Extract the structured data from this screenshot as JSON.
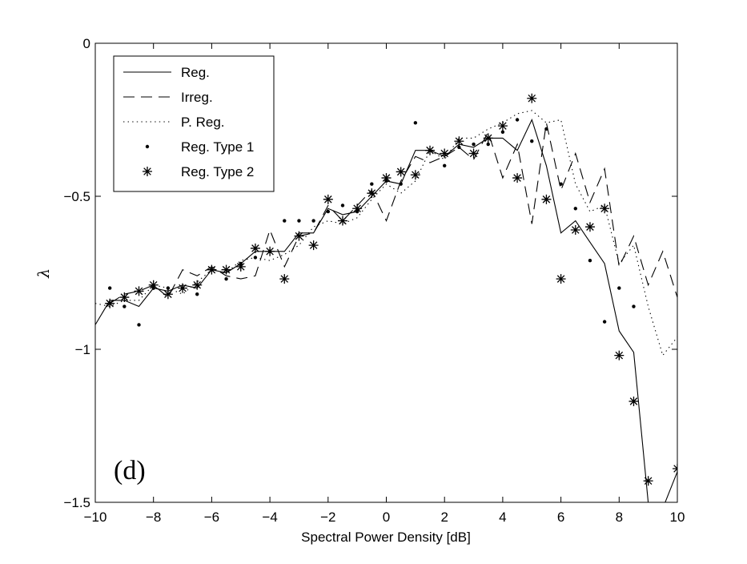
{
  "chart_data": {
    "type": "line",
    "xlabel": "Spectral Power Density [dB]",
    "ylabel": "λ",
    "panel_label": "(d)",
    "xlim": [
      -10,
      10
    ],
    "ylim": [
      -1.5,
      0
    ],
    "xticks": [
      -10,
      -8,
      -6,
      -4,
      -2,
      0,
      2,
      4,
      6,
      8,
      10
    ],
    "yticks": [
      0,
      -0.5,
      -1,
      -1.5
    ],
    "xtick_labels": [
      "−10",
      "−8",
      "−6",
      "−4",
      "−2",
      "0",
      "2",
      "4",
      "6",
      "8",
      "10"
    ],
    "ytick_labels": [
      "0",
      "−0.5",
      "−1",
      "−1.5"
    ],
    "grid": false,
    "legend_position": "top-left",
    "series": [
      {
        "name": "Reg.",
        "style": "solid",
        "x": [
          -10,
          -9.5,
          -9,
          -8.5,
          -8,
          -7.5,
          -7,
          -6.5,
          -6,
          -5.5,
          -5,
          -4.5,
          -4,
          -3.5,
          -3,
          -2.5,
          -2,
          -1.5,
          -1,
          -0.5,
          0,
          0.5,
          1,
          1.5,
          2,
          2.5,
          3,
          3.5,
          4,
          4.5,
          5,
          5.5,
          6,
          6.5,
          7,
          7.5,
          8,
          8.5,
          9,
          9.5,
          10
        ],
        "y": [
          -0.92,
          -0.84,
          -0.84,
          -0.86,
          -0.8,
          -0.81,
          -0.79,
          -0.8,
          -0.74,
          -0.75,
          -0.72,
          -0.68,
          -0.68,
          -0.68,
          -0.62,
          -0.62,
          -0.54,
          -0.56,
          -0.55,
          -0.5,
          -0.45,
          -0.46,
          -0.35,
          -0.35,
          -0.37,
          -0.33,
          -0.34,
          -0.31,
          -0.31,
          -0.35,
          -0.25,
          -0.4,
          -0.62,
          -0.58,
          -0.65,
          -0.72,
          -0.94,
          -1.01,
          -1.5,
          -1.52,
          -1.4
        ]
      },
      {
        "name": "Irreg.",
        "style": "dashed",
        "x": [
          -9.5,
          -9,
          -8.5,
          -8,
          -7.5,
          -7,
          -6.5,
          -6,
          -5.5,
          -5,
          -4.5,
          -4,
          -3.5,
          -3,
          -2.5,
          -2,
          -1.5,
          -1,
          -0.5,
          0,
          0.5,
          1,
          1.5,
          2,
          2.5,
          3,
          3.5,
          4,
          4.5,
          5,
          5.5,
          6,
          6.5,
          7,
          7.5,
          8,
          8.5,
          9,
          9.5,
          10
        ],
        "y": [
          -0.85,
          -0.82,
          -0.81,
          -0.79,
          -0.83,
          -0.74,
          -0.76,
          -0.73,
          -0.76,
          -0.77,
          -0.76,
          -0.61,
          -0.73,
          -0.63,
          -0.62,
          -0.53,
          -0.58,
          -0.53,
          -0.48,
          -0.58,
          -0.45,
          -0.37,
          -0.39,
          -0.37,
          -0.34,
          -0.38,
          -0.29,
          -0.44,
          -0.33,
          -0.59,
          -0.26,
          -0.48,
          -0.36,
          -0.52,
          -0.41,
          -0.73,
          -0.63,
          -0.79,
          -0.68,
          -0.83
        ]
      },
      {
        "name": "P. Reg.",
        "style": "dotted",
        "x": [
          -10,
          -9.5,
          -9,
          -8.5,
          -8,
          -7.5,
          -7,
          -6.5,
          -6,
          -5.5,
          -5,
          -4.5,
          -4,
          -3.5,
          -3,
          -2.5,
          -2,
          -1.5,
          -1,
          -0.5,
          0,
          0.5,
          1,
          1.5,
          2,
          2.5,
          3,
          3.5,
          4,
          4.5,
          5,
          5.5,
          6,
          6.5,
          7,
          7.5,
          8,
          8.5,
          9,
          9.5,
          10
        ],
        "y": [
          -0.85,
          -0.86,
          -0.84,
          -0.84,
          -0.79,
          -0.8,
          -0.82,
          -0.78,
          -0.74,
          -0.75,
          -0.71,
          -0.7,
          -0.71,
          -0.69,
          -0.66,
          -0.6,
          -0.58,
          -0.59,
          -0.57,
          -0.51,
          -0.46,
          -0.49,
          -0.45,
          -0.35,
          -0.38,
          -0.31,
          -0.31,
          -0.28,
          -0.26,
          -0.23,
          -0.22,
          -0.26,
          -0.25,
          -0.46,
          -0.55,
          -0.53,
          -0.72,
          -0.66,
          -0.86,
          -1.02,
          -0.96
        ]
      },
      {
        "name": "Reg. Type 1",
        "style": "dot-marker",
        "x": [
          -9.5,
          -9,
          -8.5,
          -8,
          -7.5,
          -7,
          -6.5,
          -6,
          -5.5,
          -5,
          -4.5,
          -4,
          -3.5,
          -3,
          -2.5,
          -2,
          -1.5,
          -1,
          -0.5,
          0,
          0.5,
          1,
          1.5,
          2,
          2.5,
          3,
          3.5,
          4,
          4.5,
          5,
          5.5,
          6,
          6.5,
          7,
          7.5,
          8,
          8.5
        ],
        "y": [
          -0.8,
          -0.86,
          -0.92,
          -0.8,
          -0.8,
          -0.8,
          -0.82,
          -0.74,
          -0.77,
          -0.72,
          -0.7,
          -0.68,
          -0.58,
          -0.58,
          -0.58,
          -0.55,
          -0.53,
          -0.55,
          -0.46,
          -0.45,
          -0.46,
          -0.26,
          -0.35,
          -0.4,
          -0.34,
          -0.33,
          -0.33,
          -0.29,
          -0.25,
          -0.32,
          -0.28,
          -0.46,
          -0.54,
          -0.71,
          -0.91,
          -0.8,
          -0.86
        ]
      },
      {
        "name": "Reg. Type 2",
        "style": "star-marker",
        "x": [
          -9.5,
          -9,
          -8.5,
          -8,
          -7.5,
          -7,
          -6.5,
          -6,
          -5.5,
          -5,
          -4.5,
          -4,
          -3.5,
          -3,
          -2.5,
          -2,
          -1.5,
          -1,
          -0.5,
          0,
          0.5,
          1,
          1.5,
          2,
          2.5,
          3,
          3.5,
          4,
          4.5,
          5,
          5.5,
          6,
          6.5,
          7,
          7.5,
          8,
          8.5,
          9,
          10
        ],
        "y": [
          -0.85,
          -0.83,
          -0.81,
          -0.79,
          -0.82,
          -0.8,
          -0.79,
          -0.74,
          -0.74,
          -0.73,
          -0.67,
          -0.68,
          -0.77,
          -0.63,
          -0.66,
          -0.51,
          -0.58,
          -0.54,
          -0.49,
          -0.44,
          -0.42,
          -0.43,
          -0.35,
          -0.36,
          -0.32,
          -0.36,
          -0.31,
          -0.27,
          -0.44,
          -0.18,
          -0.51,
          -0.77,
          -0.61,
          -0.6,
          -0.54,
          -1.02,
          -1.17,
          -1.43,
          -1.39
        ]
      }
    ]
  }
}
